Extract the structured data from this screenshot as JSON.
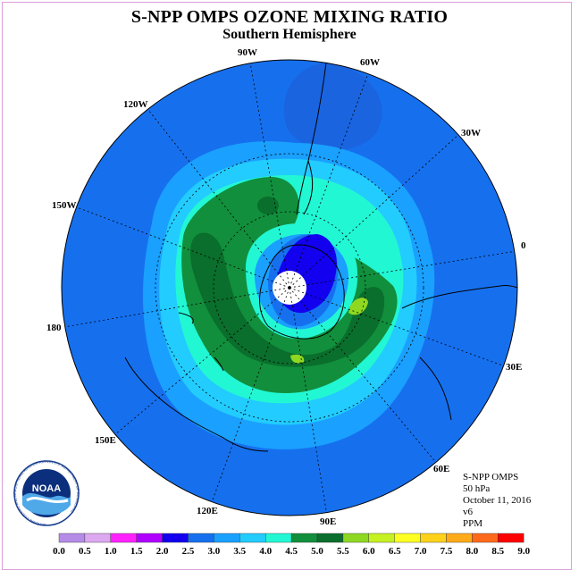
{
  "title": "S-NPP OMPS OZONE MIXING RATIO",
  "subtitle": "Southern Hemisphere",
  "info": {
    "instrument": "S-NPP OMPS",
    "level": "50 hPa",
    "date": "October 11, 2016",
    "version": "v6",
    "units": "PPM"
  },
  "logo": {
    "text": "NOAA",
    "ring_text": "NATIONAL OCEANIC AND ATMOSPHERIC ADMINISTRATION U.S. DEPARTMENT OF COMMERCE"
  },
  "longitude_labels": [
    "90W",
    "60W",
    "30W",
    "0",
    "30E",
    "60E",
    "90E",
    "120E",
    "150E",
    "180",
    "150W",
    "120W"
  ],
  "colorbar": {
    "ticks": [
      "0.0",
      "0.5",
      "1.0",
      "1.5",
      "2.0",
      "2.5",
      "3.0",
      "3.5",
      "4.0",
      "4.5",
      "5.0",
      "5.5",
      "6.0",
      "6.5",
      "7.0",
      "7.5",
      "8.0",
      "8.5",
      "9.0"
    ],
    "colors": [
      "#b58be8",
      "#dca8f0",
      "#ff22ff",
      "#b000ff",
      "#1200ee",
      "#1670ee",
      "#1aa0ff",
      "#22ccff",
      "#22f7d4",
      "#118f3c",
      "#0a6e2c",
      "#8ed822",
      "#c6f122",
      "#ffff22",
      "#ffd21a",
      "#ffaa18",
      "#ff6a1a",
      "#ff0000",
      "#8b4a2a"
    ]
  }
}
